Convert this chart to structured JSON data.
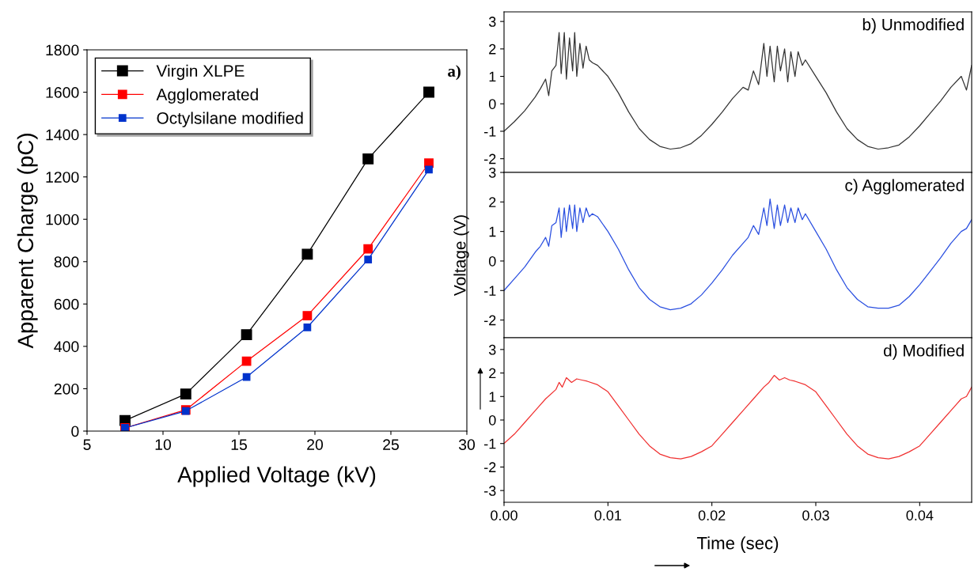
{
  "chart_data": [
    {
      "type": "line",
      "xlabel": "Applied Voltage (kV)",
      "ylabel": "Apparent Charge (pC)",
      "x": [
        7.5,
        11.5,
        15.5,
        19.5,
        23.5,
        27.5
      ],
      "series": [
        {
          "name": "Virgin XLPE",
          "color": "#000000",
          "values": [
            50,
            175,
            455,
            835,
            1285,
            1600
          ]
        },
        {
          "name": "Agglomerated",
          "color": "#ff0000",
          "values": [
            15,
            100,
            330,
            545,
            860,
            1265
          ]
        },
        {
          "name": "Octylsilane modified",
          "color": "#0033cc",
          "values": [
            15,
            95,
            255,
            490,
            810,
            1235
          ]
        }
      ],
      "xlim": [
        5,
        30
      ],
      "xticks": [
        5,
        10,
        15,
        20,
        25,
        30
      ],
      "ylim": [
        0,
        1800
      ],
      "yticks": [
        0,
        200,
        400,
        600,
        800,
        1000,
        1200,
        1400,
        1600,
        1800
      ],
      "marker": "square",
      "legend": "top left",
      "annotations": [
        "a)"
      ]
    },
    {
      "type": "line",
      "x": [
        0,
        0.001,
        0.002,
        0.003,
        0.0035,
        0.004,
        0.0043,
        0.0046,
        0.005,
        0.0053,
        0.0055,
        0.0058,
        0.006,
        0.0063,
        0.0066,
        0.0068,
        0.007,
        0.0073,
        0.0076,
        0.0079,
        0.0082,
        0.0085,
        0.009,
        0.01,
        0.011,
        0.012,
        0.013,
        0.014,
        0.015,
        0.016,
        0.017,
        0.018,
        0.019,
        0.02,
        0.021,
        0.022,
        0.023,
        0.0235,
        0.024,
        0.0245,
        0.025,
        0.0253,
        0.0256,
        0.026,
        0.0263,
        0.0266,
        0.027,
        0.0273,
        0.0276,
        0.028,
        0.0283,
        0.0287,
        0.029,
        0.03,
        0.031,
        0.032,
        0.033,
        0.034,
        0.035,
        0.036,
        0.037,
        0.038,
        0.039,
        0.04,
        0.041,
        0.042,
        0.043,
        0.044,
        0.0445,
        0.045
      ],
      "series": [
        {
          "color": "#333333",
          "values": [
            -1.0,
            -0.65,
            -0.25,
            0.25,
            0.55,
            0.9,
            0.3,
            1.2,
            1.4,
            2.6,
            1.1,
            2.6,
            0.9,
            2.4,
            1.2,
            2.6,
            1.0,
            2.2,
            1.3,
            2.1,
            1.6,
            1.5,
            1.4,
            1.0,
            0.4,
            -0.3,
            -0.9,
            -1.3,
            -1.55,
            -1.65,
            -1.6,
            -1.45,
            -1.15,
            -0.75,
            -0.3,
            0.2,
            0.6,
            0.5,
            1.2,
            0.7,
            2.2,
            1.0,
            2.1,
            0.8,
            2.1,
            1.2,
            2.0,
            0.8,
            1.9,
            1.0,
            1.9,
            1.4,
            1.6,
            1.0,
            0.4,
            -0.3,
            -0.9,
            -1.3,
            -1.55,
            -1.65,
            -1.6,
            -1.5,
            -1.2,
            -0.8,
            -0.35,
            0.1,
            0.6,
            1.0,
            0.5,
            1.4
          ]
        }
      ],
      "xlim": [
        0,
        0.045
      ],
      "ylim": [
        -2.5,
        3.35
      ],
      "yticks": [
        -2,
        -1,
        0,
        1,
        2,
        3
      ],
      "tick_labels": "y",
      "marker": "none",
      "annotations": [
        "b) Unmodified"
      ]
    },
    {
      "type": "line",
      "x": [
        0,
        0.001,
        0.002,
        0.003,
        0.0035,
        0.004,
        0.0043,
        0.0046,
        0.005,
        0.0053,
        0.0055,
        0.0058,
        0.006,
        0.0063,
        0.0066,
        0.0068,
        0.007,
        0.0073,
        0.0076,
        0.0079,
        0.0082,
        0.0085,
        0.009,
        0.01,
        0.011,
        0.012,
        0.013,
        0.014,
        0.015,
        0.016,
        0.017,
        0.018,
        0.019,
        0.02,
        0.021,
        0.022,
        0.023,
        0.0235,
        0.024,
        0.0245,
        0.025,
        0.0253,
        0.0256,
        0.026,
        0.0263,
        0.0266,
        0.027,
        0.0273,
        0.0276,
        0.028,
        0.0283,
        0.0287,
        0.029,
        0.03,
        0.031,
        0.032,
        0.033,
        0.034,
        0.035,
        0.036,
        0.037,
        0.038,
        0.039,
        0.04,
        0.041,
        0.042,
        0.043,
        0.044,
        0.0445,
        0.045
      ],
      "series": [
        {
          "color": "#2a4fe0",
          "values": [
            -1.0,
            -0.6,
            -0.2,
            0.3,
            0.5,
            0.8,
            0.5,
            1.2,
            1.3,
            1.8,
            0.8,
            1.8,
            1.0,
            1.9,
            1.1,
            1.9,
            1.0,
            1.8,
            1.3,
            1.8,
            1.5,
            1.6,
            1.5,
            1.0,
            0.4,
            -0.3,
            -0.9,
            -1.3,
            -1.55,
            -1.65,
            -1.6,
            -1.45,
            -1.15,
            -0.75,
            -0.3,
            0.2,
            0.6,
            0.8,
            1.2,
            0.9,
            1.8,
            1.2,
            2.1,
            1.1,
            1.9,
            1.2,
            1.9,
            1.3,
            1.8,
            1.3,
            1.8,
            1.4,
            1.6,
            1.0,
            0.4,
            -0.3,
            -0.9,
            -1.3,
            -1.55,
            -1.6,
            -1.6,
            -1.5,
            -1.2,
            -0.8,
            -0.35,
            0.1,
            0.6,
            1.0,
            1.1,
            1.4
          ]
        }
      ],
      "xlim": [
        0,
        0.045
      ],
      "ylim": [
        -2.6,
        3.0
      ],
      "yticks": [
        -2,
        -1,
        0,
        1,
        2,
        3
      ],
      "tick_labels": "y",
      "marker": "none",
      "ylabel": "Voltage (V)",
      "annotations": [
        "c) Agglomerated"
      ]
    },
    {
      "type": "line",
      "x": [
        0,
        0.001,
        0.002,
        0.003,
        0.004,
        0.005,
        0.0053,
        0.0056,
        0.006,
        0.0065,
        0.007,
        0.0075,
        0.008,
        0.009,
        0.01,
        0.011,
        0.012,
        0.013,
        0.014,
        0.015,
        0.016,
        0.017,
        0.018,
        0.019,
        0.02,
        0.021,
        0.022,
        0.023,
        0.024,
        0.025,
        0.0255,
        0.026,
        0.0265,
        0.027,
        0.0275,
        0.028,
        0.029,
        0.03,
        0.031,
        0.032,
        0.033,
        0.034,
        0.035,
        0.036,
        0.037,
        0.038,
        0.039,
        0.04,
        0.041,
        0.042,
        0.043,
        0.044,
        0.0445,
        0.045
      ],
      "series": [
        {
          "color": "#f03030",
          "values": [
            -1.0,
            -0.6,
            -0.1,
            0.4,
            0.9,
            1.3,
            1.6,
            1.4,
            1.8,
            1.6,
            1.75,
            1.7,
            1.65,
            1.5,
            1.2,
            0.6,
            0.0,
            -0.6,
            -1.1,
            -1.45,
            -1.6,
            -1.65,
            -1.55,
            -1.35,
            -1.1,
            -0.6,
            -0.1,
            0.4,
            0.9,
            1.4,
            1.6,
            1.9,
            1.7,
            1.8,
            1.7,
            1.65,
            1.5,
            1.2,
            0.6,
            0.0,
            -0.6,
            -1.1,
            -1.45,
            -1.6,
            -1.65,
            -1.55,
            -1.35,
            -1.1,
            -0.6,
            -0.1,
            0.4,
            0.9,
            1.0,
            1.4
          ]
        }
      ],
      "xlim": [
        0,
        0.045
      ],
      "xticks": [
        {
          "value": 0,
          "label": "0.00"
        },
        {
          "value": 0.01,
          "label": "0.01"
        },
        {
          "value": 0.02,
          "label": "0.02"
        },
        {
          "value": 0.03,
          "label": "0.03"
        },
        {
          "value": 0.04,
          "label": "0.04"
        }
      ],
      "ylim": [
        -3.5,
        3.5
      ],
      "yticks": [
        -3,
        -2,
        -1,
        0,
        1,
        2,
        3
      ],
      "marker": "none",
      "xlabel": "Time (sec)",
      "annotations": [
        "d) Modified"
      ]
    }
  ]
}
